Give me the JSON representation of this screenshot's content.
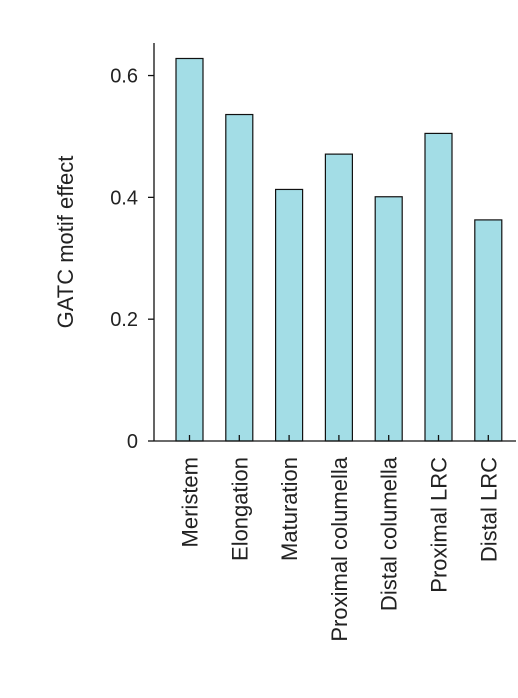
{
  "chart_data": {
    "type": "bar",
    "categories": [
      "Meristem",
      "Elongation",
      "Maturation",
      "Proximal columella",
      "Distal columella",
      "Proximal LRC",
      "Distal LRC"
    ],
    "values": [
      0.628,
      0.536,
      0.413,
      0.471,
      0.401,
      0.505,
      0.363
    ],
    "ylabel": "GATC motif effect",
    "ylim": [
      0,
      0.66
    ],
    "yticks": [
      0,
      0.2,
      0.4,
      0.6
    ],
    "ytick_labels": [
      "0",
      "0.2",
      "0.4",
      "0.6"
    ],
    "bar_color": "#a3dde6",
    "edge_color": "#111111",
    "grid": false
  }
}
